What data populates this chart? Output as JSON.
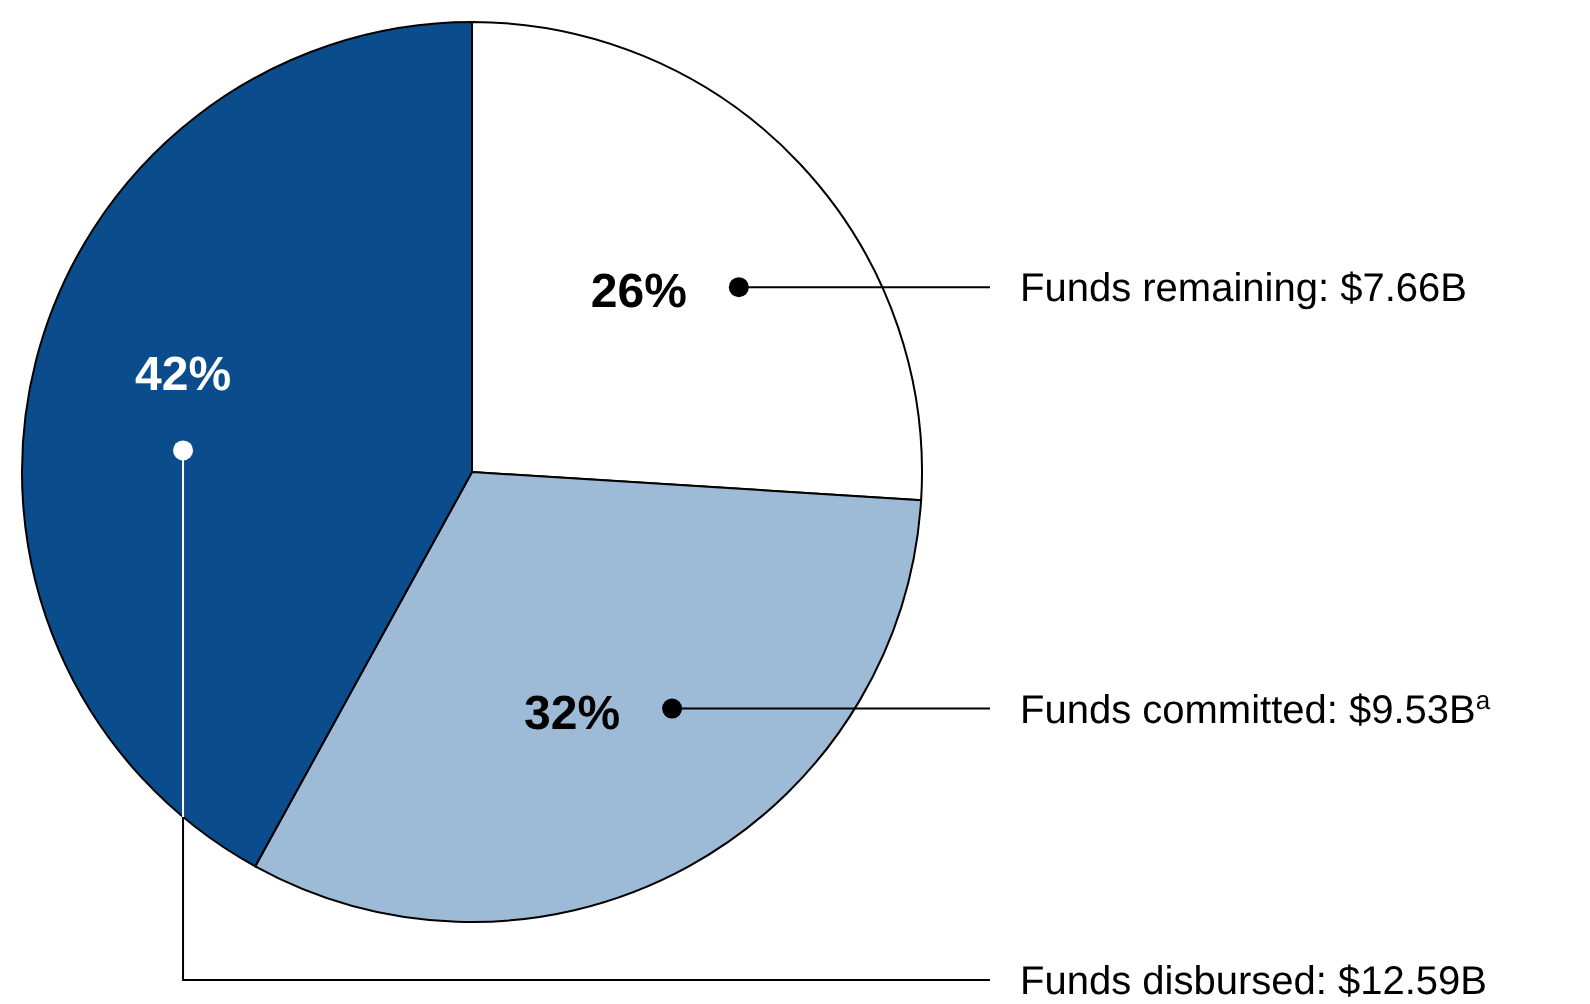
{
  "chart_data": {
    "type": "pie",
    "categories": [
      "Funds remaining: $7.66B",
      "Funds committed: $9.53B$^{a}$",
      "Funds disbursed: $12.59B"
    ],
    "values": [
      26,
      32,
      42
    ],
    "colors": [
      "#ffffff",
      "#9dbad6",
      "#0b4c8c"
    ],
    "value_labels": [
      "26%",
      "32%",
      "42%"
    ],
    "legend": false
  }
}
